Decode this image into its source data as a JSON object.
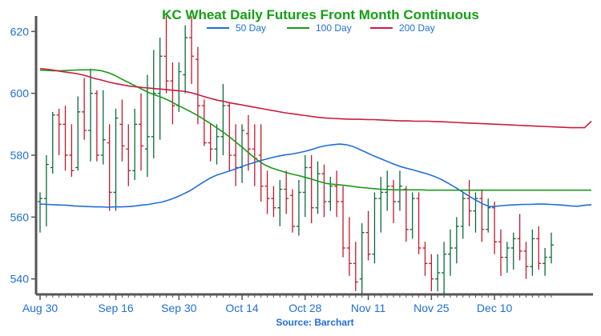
{
  "chart_data": {
    "type": "ohlc",
    "title": "KC Wheat Daily Futures Front Month Continuous",
    "source": "Source: Barchart",
    "xlabel": "",
    "ylabel": "",
    "ylim": [
      535,
      625
    ],
    "yticks": [
      540,
      560,
      580,
      600,
      620
    ],
    "ytick_labels": [
      "540",
      "560",
      "580",
      "600",
      "620"
    ],
    "xtick_labels": [
      "Aug 30",
      "Sep 16",
      "Sep 30",
      "Oct 14",
      "Oct 28",
      "Nov 11",
      "Nov 25",
      "Dec 10"
    ],
    "xtick_index": [
      0,
      12,
      22,
      32,
      42,
      52,
      62,
      72
    ],
    "grid": false,
    "legend": "top-center",
    "colors": {
      "up": "#0a6b3c",
      "down": "#c4182c",
      "ma50": "#1f6fd6",
      "ma100": "#1a9a1a",
      "ma200": "#c81e3c",
      "title": "#14a014",
      "axis_text": "#1f6fd6",
      "axis": "#555555"
    },
    "x": [
      "Aug 30",
      "Aug 31",
      "Sep 1",
      "Sep 2",
      "Sep 5",
      "Sep 6",
      "Sep 7",
      "Sep 8",
      "Sep 9",
      "Sep 12",
      "Sep 13",
      "Sep 14",
      "Sep 16",
      "Sep 17",
      "Sep 18",
      "Sep 19",
      "Sep 20",
      "Sep 21",
      "Sep 22",
      "Sep 23",
      "Sep 24",
      "Sep 26",
      "Sep 30",
      "Oct 1",
      "Oct 2",
      "Oct 3",
      "Oct 4",
      "Oct 5",
      "Oct 6",
      "Oct 7",
      "Oct 8",
      "Oct 10",
      "Oct 14",
      "Oct 15",
      "Oct 16",
      "Oct 17",
      "Oct 18",
      "Oct 19",
      "Oct 20",
      "Oct 21",
      "Oct 22",
      "Oct 24",
      "Oct 28",
      "Oct 29",
      "Oct 30",
      "Oct 31",
      "Nov 1",
      "Nov 2",
      "Nov 3",
      "Nov 4",
      "Nov 5",
      "Nov 7",
      "Nov 11",
      "Nov 12",
      "Nov 13",
      "Nov 14",
      "Nov 15",
      "Nov 16",
      "Nov 17",
      "Nov 18",
      "Nov 19",
      "Nov 21",
      "Nov 25",
      "Nov 26",
      "Nov 27",
      "Nov 28",
      "Nov 29",
      "Nov 30",
      "Dec 1",
      "Dec 2",
      "Dec 3",
      "Dec 5",
      "Dec 10",
      "Dec 11",
      "Dec 12",
      "Dec 13",
      "Dec 14",
      "Dec 15",
      "Dec 16",
      "Dec 17",
      "Dec 18",
      "Dec 19"
    ],
    "ohlc": [
      [
        565,
        568,
        555,
        566
      ],
      [
        566,
        580,
        557,
        577
      ],
      [
        576,
        594,
        574,
        593
      ],
      [
        593,
        595,
        580,
        590
      ],
      [
        590,
        596,
        575,
        580
      ],
      [
        580,
        590,
        573,
        575
      ],
      [
        576,
        599,
        575,
        594
      ],
      [
        594,
        605,
        585,
        588
      ],
      [
        588,
        608,
        578,
        600
      ],
      [
        600,
        601,
        578,
        580
      ],
      [
        580,
        601,
        577,
        585
      ],
      [
        584,
        590,
        562,
        568
      ],
      [
        568,
        595,
        562,
        592
      ],
      [
        590,
        598,
        578,
        583
      ],
      [
        582,
        590,
        570,
        575
      ],
      [
        575,
        595,
        572,
        590
      ],
      [
        590,
        600,
        575,
        583
      ],
      [
        582,
        606,
        573,
        586
      ],
      [
        586,
        614,
        579,
        600
      ],
      [
        600,
        618,
        585,
        612
      ],
      [
        612,
        625,
        600,
        604
      ],
      [
        604,
        610,
        590,
        596
      ],
      [
        596,
        610,
        594,
        607
      ],
      [
        606,
        622,
        600,
        618
      ],
      [
        618,
        625,
        603,
        612
      ],
      [
        611,
        615,
        590,
        596
      ],
      [
        596,
        598,
        583,
        584
      ],
      [
        584,
        590,
        578,
        582
      ],
      [
        582,
        590,
        577,
        586
      ],
      [
        586,
        603,
        580,
        596
      ],
      [
        596,
        597,
        575,
        580
      ],
      [
        580,
        590,
        570,
        576
      ],
      [
        576,
        590,
        571,
        588
      ],
      [
        587,
        593,
        575,
        582
      ],
      [
        582,
        590,
        570,
        579
      ],
      [
        580,
        590,
        565,
        570
      ],
      [
        570,
        575,
        561,
        566
      ],
      [
        566,
        570,
        560,
        563
      ],
      [
        563,
        572,
        557,
        569
      ],
      [
        569,
        575,
        561,
        566
      ],
      [
        567,
        569,
        555,
        557
      ],
      [
        557,
        572,
        554,
        568
      ],
      [
        568,
        580,
        560,
        576
      ],
      [
        576,
        580,
        558,
        563
      ],
      [
        563,
        578,
        561,
        574
      ],
      [
        574,
        577,
        560,
        565
      ],
      [
        565,
        573,
        562,
        570
      ],
      [
        570,
        575,
        560,
        565
      ],
      [
        565,
        570,
        547,
        550
      ],
      [
        550,
        560,
        541,
        545
      ],
      [
        545,
        552,
        536,
        539
      ],
      [
        540,
        558,
        535,
        555
      ],
      [
        555,
        562,
        546,
        548
      ],
      [
        548,
        568,
        545,
        566
      ],
      [
        566,
        573,
        555,
        568
      ],
      [
        568,
        575,
        562,
        570
      ],
      [
        570,
        572,
        558,
        565
      ],
      [
        565,
        575,
        562,
        570
      ],
      [
        569,
        570,
        552,
        556
      ],
      [
        556,
        568,
        553,
        566
      ],
      [
        566,
        568,
        548,
        550
      ],
      [
        550,
        552,
        541,
        545
      ],
      [
        545,
        548,
        536,
        540
      ],
      [
        540,
        548,
        536,
        542
      ],
      [
        542,
        552,
        535,
        548
      ],
      [
        548,
        556,
        541,
        550
      ],
      [
        550,
        560,
        545,
        557
      ],
      [
        557,
        568,
        553,
        566
      ],
      [
        566,
        572,
        557,
        562
      ],
      [
        562,
        568,
        555,
        566
      ],
      [
        566,
        569,
        552,
        556
      ],
      [
        556,
        566,
        555,
        563
      ],
      [
        563,
        565,
        548,
        552
      ],
      [
        552,
        556,
        541,
        547
      ],
      [
        547,
        552,
        542,
        550
      ],
      [
        550,
        555,
        543,
        553
      ],
      [
        553,
        561,
        546,
        549
      ],
      [
        549,
        552,
        540,
        544
      ],
      [
        544,
        556,
        541,
        553
      ],
      [
        553,
        557,
        543,
        545
      ],
      [
        545,
        550,
        541,
        547
      ],
      [
        547,
        555,
        545,
        551
      ]
    ],
    "series": [
      {
        "name": "50 Day",
        "key": "ma50",
        "values": [
          564.2,
          564.1,
          564.0,
          563.9,
          563.8,
          563.6,
          563.5,
          563.4,
          563.3,
          563.3,
          563.2,
          563.3,
          563.3,
          563.4,
          563.6,
          563.9,
          564.1,
          564.5,
          564.9,
          565.6,
          566.4,
          567.4,
          568.5,
          569.9,
          571.3,
          572.6,
          573.6,
          574.3,
          575.0,
          575.8,
          576.6,
          577.3,
          578.0,
          578.6,
          579.2,
          579.7,
          580.1,
          580.4,
          580.8,
          581.3,
          581.9,
          582.6,
          583.1,
          583.4,
          583.6,
          583.4,
          582.8,
          581.8,
          580.8,
          579.8,
          578.9,
          578.0,
          577.1,
          576.3,
          575.7,
          575.1,
          574.5,
          573.9,
          573.1,
          572.1,
          570.9,
          569.6,
          568.2,
          566.8,
          565.5,
          564.3,
          563.4,
          563.5,
          563.7,
          563.9,
          564.0,
          564.1,
          564.1,
          564.2,
          564.2,
          564.1,
          564.0,
          563.8,
          563.6,
          563.5,
          563.8,
          564.0
        ]
      },
      {
        "name": "100 Day",
        "key": "ma100",
        "values": [
          607.5,
          607.4,
          607.3,
          607.3,
          607.4,
          607.5,
          607.6,
          607.6,
          607.6,
          607.3,
          606.7,
          605.8,
          604.6,
          603.5,
          602.4,
          601.3,
          600.2,
          599.4,
          598.6,
          597.6,
          596.4,
          595.3,
          594.2,
          593.0,
          591.7,
          590.3,
          588.8,
          587.3,
          585.6,
          583.8,
          582.0,
          580.1,
          578.3,
          576.9,
          575.9,
          575.2,
          574.5,
          573.9,
          573.4,
          572.8,
          572.2,
          571.5,
          570.9,
          570.6,
          570.4,
          570.2,
          569.9,
          569.6,
          569.4,
          569.2,
          569.0,
          568.9,
          568.8,
          568.8,
          568.8,
          568.8,
          568.8,
          568.7,
          568.7,
          568.7,
          568.7,
          568.7,
          568.7,
          568.7,
          568.7,
          568.7,
          568.7,
          568.7,
          568.7,
          568.7,
          568.7,
          568.7,
          568.7,
          568.7,
          568.7,
          568.7,
          568.7,
          568.7,
          568.7,
          568.7,
          568.7,
          568.7
        ]
      },
      {
        "name": "200 Day",
        "key": "ma200",
        "values": [
          608.0,
          607.8,
          607.5,
          607.1,
          606.8,
          606.5,
          606.1,
          605.5,
          604.8,
          604.3,
          603.7,
          603.2,
          602.8,
          602.4,
          602.1,
          601.9,
          601.7,
          601.5,
          601.3,
          601.1,
          600.9,
          600.7,
          600.3,
          599.7,
          599.0,
          598.4,
          597.8,
          597.4,
          596.9,
          596.5,
          596.1,
          595.7,
          595.3,
          594.9,
          594.5,
          594.1,
          593.7,
          593.4,
          593.1,
          592.8,
          592.5,
          592.2,
          592.0,
          591.9,
          591.8,
          591.7,
          591.6,
          591.6,
          591.5,
          591.5,
          591.4,
          591.3,
          591.2,
          591.1,
          591.1,
          591.0,
          591.0,
          591.0,
          590.9,
          590.8,
          590.7,
          590.6,
          590.5,
          590.4,
          590.3,
          590.2,
          590.1,
          590.0,
          589.9,
          589.8,
          589.7,
          589.6,
          589.5,
          589.4,
          589.3,
          589.2,
          589.1,
          589.0,
          588.9,
          588.9,
          588.9,
          591.0
        ]
      }
    ]
  }
}
